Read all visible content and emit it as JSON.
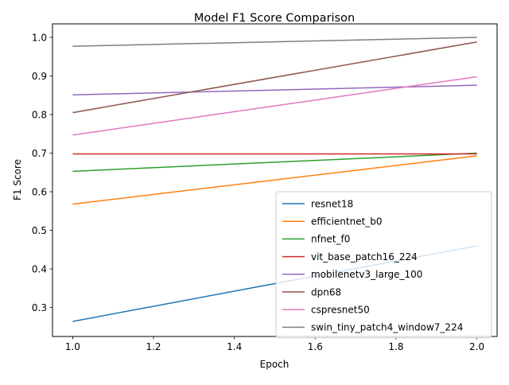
{
  "chart_data": {
    "type": "line",
    "title": "Model F1 Score Comparison",
    "xlabel": "Epoch",
    "ylabel": "F1 Score",
    "xlim": [
      0.95,
      2.05
    ],
    "ylim": [
      0.225,
      1.035
    ],
    "xticks": [
      1.0,
      1.2,
      1.4,
      1.6,
      1.8,
      2.0
    ],
    "xtick_labels": [
      "1.0",
      "1.2",
      "1.4",
      "1.6",
      "1.8",
      "2.0"
    ],
    "yticks": [
      0.3,
      0.4,
      0.5,
      0.6,
      0.7,
      0.8,
      0.9,
      1.0
    ],
    "ytick_labels": [
      "0.3",
      "0.4",
      "0.5",
      "0.6",
      "0.7",
      "0.8",
      "0.9",
      "1.0"
    ],
    "grid": false,
    "legend": "lower-right",
    "x": [
      1,
      2
    ],
    "series": [
      {
        "name": "resnet18",
        "color": "#1f77b4",
        "values": [
          0.264,
          0.46
        ]
      },
      {
        "name": "efficientnet_b0",
        "color": "#ff7f0e",
        "values": [
          0.568,
          0.693
        ]
      },
      {
        "name": "nfnet_f0",
        "color": "#2ca02c",
        "values": [
          0.653,
          0.7
        ]
      },
      {
        "name": "vit_base_patch16_224",
        "color": "#d62728",
        "values": [
          0.698,
          0.698
        ]
      },
      {
        "name": "mobilenetv3_large_100",
        "color": "#9467bd",
        "values": [
          0.851,
          0.876
        ]
      },
      {
        "name": "dpn68",
        "color": "#8c564b",
        "values": [
          0.805,
          0.988
        ]
      },
      {
        "name": "cspresnet50",
        "color": "#e377c2",
        "values": [
          0.747,
          0.898
        ]
      },
      {
        "name": "swin_tiny_patch4_window7_224",
        "color": "#7f7f7f",
        "values": [
          0.977,
          1.0
        ]
      }
    ]
  }
}
